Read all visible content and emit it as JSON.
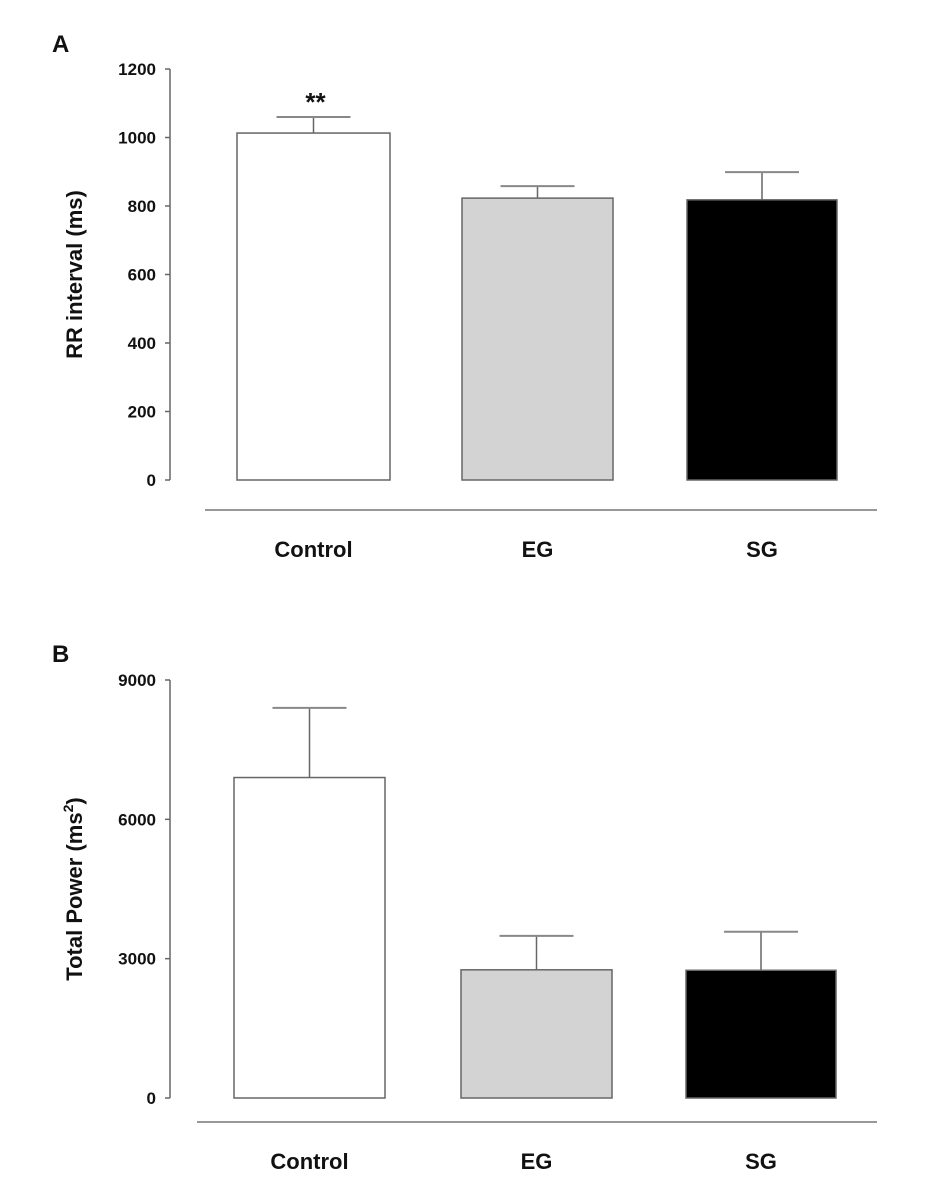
{
  "chart_data": [
    {
      "type": "bar",
      "panel_label": "A",
      "categories": [
        "Control",
        "EG",
        "SG"
      ],
      "values": [
        1013,
        823,
        818
      ],
      "error_upper": [
        1060,
        858,
        899
      ],
      "ylabel": "RR interval (ms)",
      "ylim": [
        0,
        1200
      ],
      "yticks": [
        0,
        200,
        400,
        600,
        800,
        1000,
        1200
      ],
      "annotations": [
        {
          "category": "Control",
          "text": "**"
        }
      ],
      "colors": [
        "#ffffff",
        "#d3d3d3",
        "#000000"
      ],
      "grid": false
    },
    {
      "type": "bar",
      "panel_label": "B",
      "categories": [
        "Control",
        "EG",
        "SG"
      ],
      "values": [
        6900,
        2760,
        2750
      ],
      "error_upper": [
        8400,
        3490,
        3580
      ],
      "ylabel": "Total Power (ms",
      "ylabel_superscript": "2",
      "ylabel_suffix": ")",
      "ylim": [
        0,
        9000
      ],
      "yticks": [
        0,
        3000,
        6000,
        9000
      ],
      "annotations": [],
      "colors": [
        "#ffffff",
        "#d3d3d3",
        "#000000"
      ],
      "grid": false
    }
  ]
}
